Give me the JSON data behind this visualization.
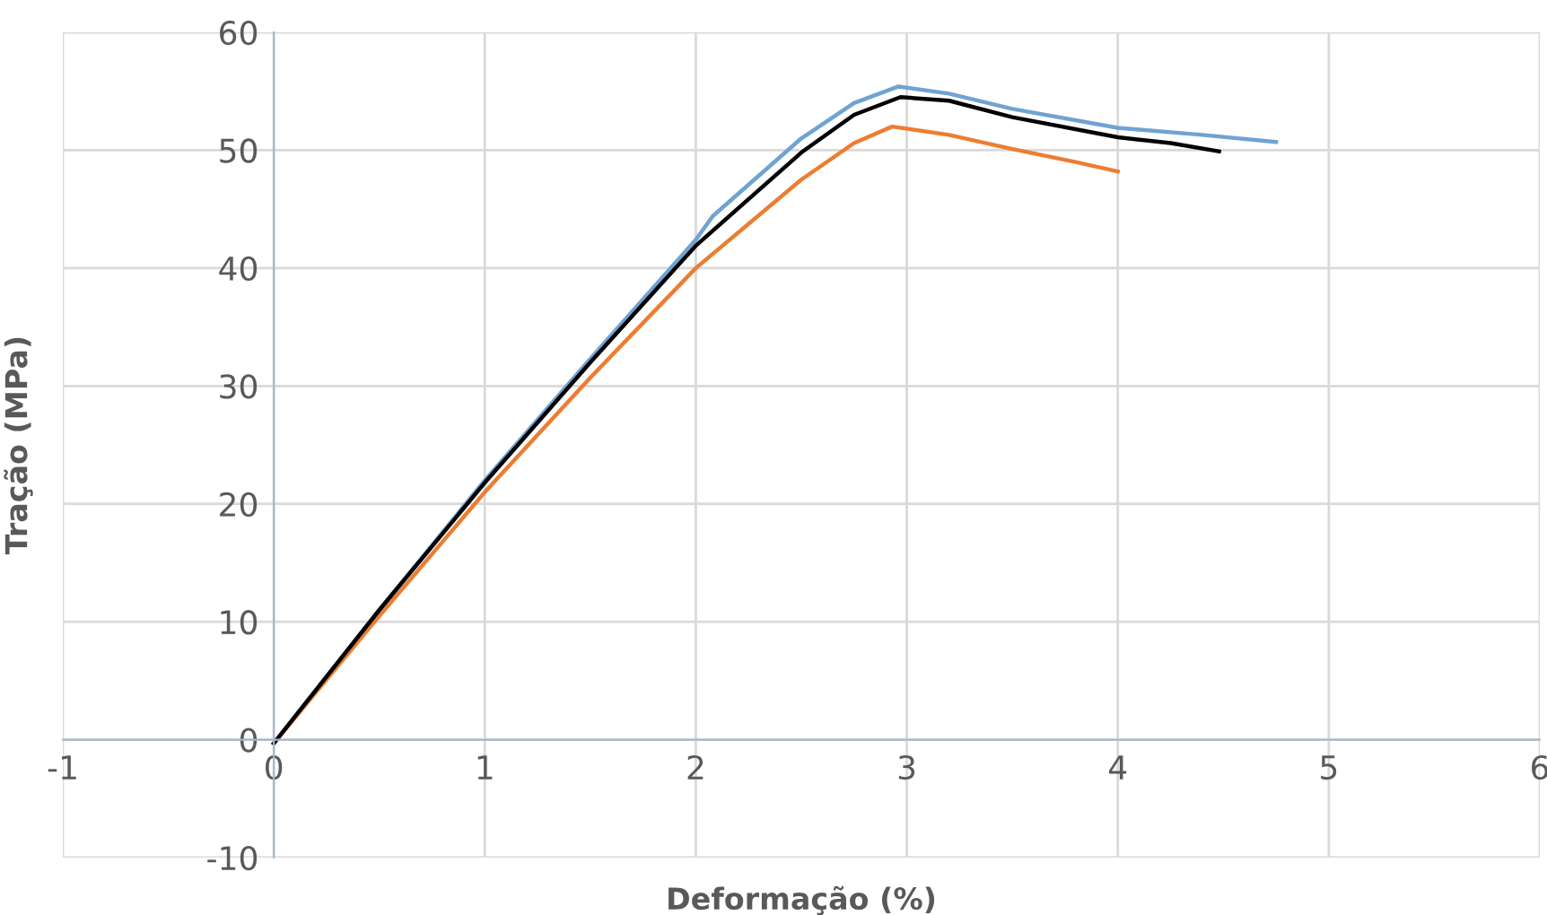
{
  "chart_data": {
    "type": "line",
    "xlabel": "Deformação (%)",
    "ylabel": "Tração (MPa)",
    "xlim": [
      -1,
      6
    ],
    "ylim": [
      -10,
      60
    ],
    "xticks": [
      -1,
      0,
      1,
      2,
      3,
      4,
      5,
      6
    ],
    "yticks": [
      -10,
      0,
      10,
      20,
      30,
      40,
      50,
      60
    ],
    "grid": true,
    "marker": "none",
    "line_style": "solid",
    "series": [
      {
        "color": "#6fa3d2",
        "x": [
          0,
          0.5,
          1,
          1.5,
          2,
          2.08,
          2.5,
          2.75,
          2.96,
          3.2,
          3.5,
          4,
          4.4,
          4.75
        ],
        "values": [
          -0.3,
          11,
          22,
          32.3,
          42.4,
          44.4,
          51,
          54,
          55.4,
          54.8,
          53.5,
          51.9,
          51.3,
          50.7
        ]
      },
      {
        "color": "#ed7d31",
        "x": [
          0,
          0.5,
          1,
          1.5,
          2,
          2.5,
          2.75,
          2.93,
          3.2,
          3.5,
          3.8,
          4
        ],
        "values": [
          -0.3,
          10.5,
          21,
          30.7,
          40,
          47.5,
          50.6,
          52,
          51.3,
          50.1,
          49,
          48.2
        ]
      },
      {
        "color": "#000000",
        "x": [
          0,
          0.5,
          1,
          1.5,
          2,
          2.5,
          2.75,
          2.97,
          3.2,
          3.5,
          4,
          4.25,
          4.48
        ],
        "values": [
          -0.3,
          11,
          21.8,
          32,
          41.9,
          49.8,
          53,
          54.5,
          54.2,
          52.8,
          51.1,
          50.6,
          49.9
        ]
      }
    ]
  }
}
